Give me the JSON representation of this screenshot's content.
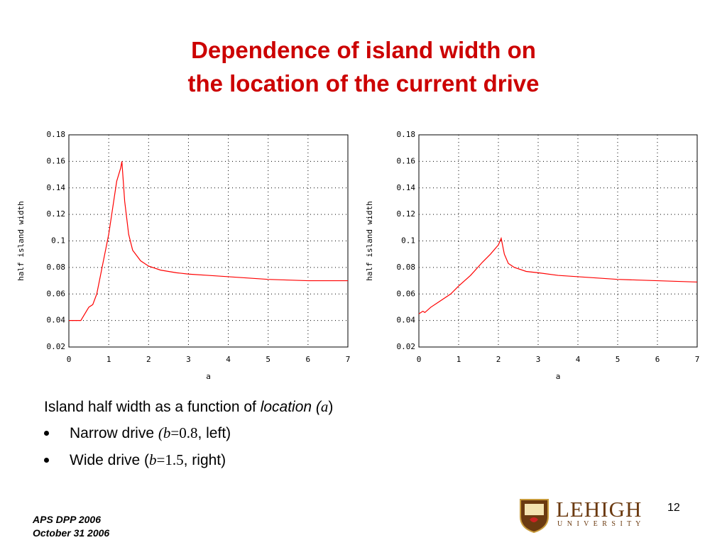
{
  "title": [
    "Dependence of island width on",
    "the location of the current drive"
  ],
  "chart_data": [
    {
      "type": "line",
      "ylabel": "half island width",
      "xlabel": "a",
      "color": "#ff0000",
      "grid": true,
      "x": [
        0,
        0.3,
        0.4,
        0.5,
        0.6,
        0.7,
        0.8,
        0.9,
        1.0,
        1.1,
        1.2,
        1.3,
        1.33,
        1.4,
        1.5,
        1.6,
        1.8,
        2.0,
        2.3,
        2.7,
        3,
        3.5,
        4,
        4.5,
        5,
        6,
        7
      ],
      "values": [
        0.04,
        0.04,
        0.045,
        0.05,
        0.052,
        0.06,
        0.075,
        0.09,
        0.105,
        0.125,
        0.145,
        0.155,
        0.16,
        0.13,
        0.105,
        0.093,
        0.085,
        0.081,
        0.078,
        0.076,
        0.075,
        0.074,
        0.073,
        0.072,
        0.071,
        0.07,
        0.07
      ],
      "xlim": [
        0,
        7
      ],
      "xticks": [
        0,
        1,
        2,
        3,
        4,
        5,
        6,
        7
      ],
      "ylim": [
        0.02,
        0.18
      ],
      "yticks": [
        0.02,
        0.04,
        0.06,
        0.08,
        0.1,
        0.12,
        0.14,
        0.16,
        0.18
      ]
    },
    {
      "type": "line",
      "ylabel": "half island width",
      "xlabel": "a",
      "color": "#ff0000",
      "grid": true,
      "x": [
        0,
        0.1,
        0.15,
        0.3,
        0.5,
        0.8,
        1.0,
        1.3,
        1.6,
        1.8,
        2.0,
        2.07,
        2.15,
        2.25,
        2.4,
        2.7,
        3,
        3.5,
        4,
        5,
        6,
        7
      ],
      "values": [
        0.045,
        0.047,
        0.046,
        0.05,
        0.054,
        0.06,
        0.066,
        0.074,
        0.084,
        0.09,
        0.097,
        0.102,
        0.09,
        0.083,
        0.08,
        0.077,
        0.076,
        0.074,
        0.073,
        0.071,
        0.07,
        0.069
      ],
      "xlim": [
        0,
        7
      ],
      "xticks": [
        0,
        1,
        2,
        3,
        4,
        5,
        6,
        7
      ],
      "ylim": [
        0.02,
        0.18
      ],
      "yticks": [
        0.02,
        0.04,
        0.06,
        0.08,
        0.1,
        0.12,
        0.14,
        0.16,
        0.18
      ]
    }
  ],
  "caption": {
    "intro": [
      "Island half width as a function of ",
      "location (",
      "a",
      ")"
    ],
    "bullets": [
      [
        "Narrow drive ",
        "(",
        "b",
        "=0.8",
        ", left)"
      ],
      [
        "Wide drive (",
        "b",
        "=1.5",
        ", right)"
      ]
    ]
  },
  "footer": {
    "event": "APS DPP 2006",
    "date": "October 31 2006",
    "page": "12",
    "logo": "LEHIGH",
    "logo_sub": "U N I V E R S I T Y"
  }
}
